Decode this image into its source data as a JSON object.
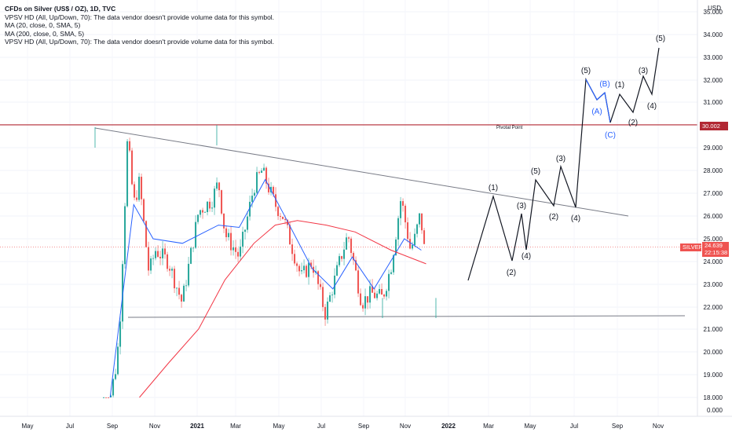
{
  "legend": {
    "title": "CFDs on Silver (US$ / OZ), 1D, TVC",
    "line1": "VPSV HD (All, Up/Down, 70): The data vendor doesn't provide volume data for this symbol.",
    "line2": "MA (20, close, 0, SMA, 5)",
    "line3": "MA (200, close, 0, SMA, 5)",
    "line4": "VPSV HD (All, Up/Down, 70): The data vendor doesn't provide volume data for this symbol."
  },
  "axis": {
    "currency": "USD",
    "y_ticks": [
      "35.000",
      "34.000",
      "33.000",
      "32.000",
      "31.000",
      "29.000",
      "28.000",
      "27.000",
      "26.000",
      "25.000",
      "24.000",
      "23.000",
      "22.000",
      "21.000",
      "20.000",
      "19.000",
      "18.000",
      "0.000"
    ],
    "x_ticks": [
      "May",
      "Jul",
      "Sep",
      "Nov",
      "2021",
      "Mar",
      "May",
      "Jul",
      "Sep",
      "Nov",
      "2022",
      "Mar",
      "May",
      "Jul",
      "Sep",
      "Nov"
    ]
  },
  "pivot": {
    "label": "Pivotal Point",
    "tag": "30.002",
    "color": "#b22833"
  },
  "current": {
    "symbol": "SILVER",
    "price": "24.639",
    "countdown": "22:15:38",
    "color": "#ef5350"
  },
  "colors": {
    "up": "#26a69a",
    "down": "#ef5350",
    "ma20": "#2962ff",
    "ma200": "#f23645",
    "trend": "#787b86",
    "projection": "#131722",
    "correction": "#2962ff"
  },
  "wave_labels": {
    "w1a": "(1)",
    "w2a": "(2)",
    "w3a": "(3)",
    "w4a": "(4)",
    "w5a": "(5)",
    "w2b": "(2)",
    "w3b": "(3)",
    "w4b": "(4)",
    "w5b": "(5)",
    "wA": "(A)",
    "wB": "(B)",
    "wC": "(C)",
    "w1c": "(1)",
    "w2c": "(2)",
    "w3c": "(3)",
    "w4c": "(4)",
    "w5c": "(5)"
  },
  "chart_data": {
    "type": "line",
    "title": "CFDs on Silver (US$ / OZ), 1D, TVC",
    "ylabel": "USD",
    "ylim": [
      17.8,
      35.2
    ],
    "resistance_level": 30.002,
    "current_price": 24.639,
    "series": [
      {
        "name": "CFDs on Silver (US$ / OZ), 1D, TVC",
        "x": [
          "2020-06-15",
          "2020-07-01",
          "2020-07-15",
          "2020-07-22",
          "2020-08-07",
          "2020-08-20",
          "2020-09-01",
          "2020-09-21",
          "2020-10-05",
          "2020-11-01",
          "2020-11-30",
          "2021-01-04",
          "2021-02-01",
          "2021-02-15",
          "2021-03-01",
          "2021-03-31",
          "2021-05-01",
          "2021-05-18",
          "2021-06-15",
          "2021-07-01",
          "2021-08-09",
          "2021-09-01",
          "2021-09-29",
          "2021-11-01",
          "2021-11-16",
          "2021-12-15",
          "2022-01-04",
          "2022-01-28",
          "2022-02-15",
          "2022-03-08",
          "2022-03-28",
          "2022-04-06",
          "2022-04-18",
          "2022-04-26"
        ],
        "y": [
          17.8,
          18.0,
          19.5,
          21.5,
          29.5,
          26.5,
          27.5,
          23.5,
          24.5,
          24.0,
          22.2,
          26.2,
          26.7,
          27.5,
          25.2,
          24.2,
          27.3,
          28.0,
          26.5,
          26.0,
          23.3,
          24.0,
          21.7,
          24.2,
          25.2,
          22.2,
          22.6,
          22.4,
          23.8,
          26.8,
          24.5,
          25.0,
          26.1,
          24.6
        ]
      },
      {
        "name": "MA (20, close, 0, SMA, 5)",
        "x": [
          "2020-07-01",
          "2020-08-20",
          "2020-09-30",
          "2020-12-01",
          "2021-02-15",
          "2021-03-31",
          "2021-05-25",
          "2021-06-30",
          "2021-09-01",
          "2021-10-15",
          "2021-11-25",
          "2022-01-10",
          "2022-03-15",
          "2022-04-20"
        ],
        "y": [
          17.8,
          26.5,
          25.0,
          24.8,
          25.6,
          25.5,
          27.6,
          26.2,
          23.7,
          22.8,
          24.2,
          22.8,
          25.0,
          24.5
        ]
      },
      {
        "name": "MA (200, close, 0, SMA, 5)",
        "x": [
          "2020-09-01",
          "2020-11-01",
          "2021-01-04",
          "2021-03-01",
          "2021-05-01",
          "2021-06-15",
          "2021-08-01",
          "2021-10-01",
          "2021-12-01",
          "2022-02-15",
          "2022-04-30"
        ],
        "y": [
          17.8,
          19.5,
          21.0,
          23.2,
          24.8,
          25.6,
          25.8,
          25.6,
          25.3,
          24.5,
          23.9
        ]
      }
    ]
  }
}
